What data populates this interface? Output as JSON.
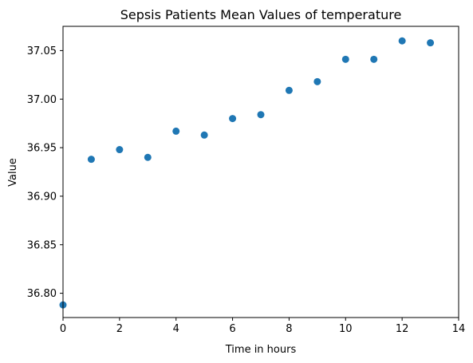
{
  "chart_data": {
    "type": "scatter",
    "title": "Sepsis Patients Mean Values of temperature",
    "xlabel": "Time in hours",
    "ylabel": "Value",
    "xlim": [
      0,
      14
    ],
    "ylim": [
      36.775,
      37.075
    ],
    "xticks": [
      0,
      2,
      4,
      6,
      8,
      10,
      12,
      14
    ],
    "xtick_labels": [
      "0",
      "2",
      "4",
      "6",
      "8",
      "10",
      "12",
      "14"
    ],
    "yticks": [
      36.8,
      36.85,
      36.9,
      36.95,
      37.0,
      37.05
    ],
    "ytick_labels": [
      "36.80",
      "36.85",
      "36.90",
      "36.95",
      "37.00",
      "37.05"
    ],
    "grid": false,
    "marker_color": "#1f77b4",
    "points": [
      {
        "x": 0,
        "y": 36.788
      },
      {
        "x": 1,
        "y": 36.938
      },
      {
        "x": 2,
        "y": 36.948
      },
      {
        "x": 3,
        "y": 36.94
      },
      {
        "x": 4,
        "y": 36.967
      },
      {
        "x": 5,
        "y": 36.963
      },
      {
        "x": 6,
        "y": 36.98
      },
      {
        "x": 7,
        "y": 36.984
      },
      {
        "x": 8,
        "y": 37.009
      },
      {
        "x": 9,
        "y": 37.018
      },
      {
        "x": 10,
        "y": 37.041
      },
      {
        "x": 11,
        "y": 37.041
      },
      {
        "x": 12,
        "y": 37.06
      },
      {
        "x": 13,
        "y": 37.058
      }
    ]
  }
}
